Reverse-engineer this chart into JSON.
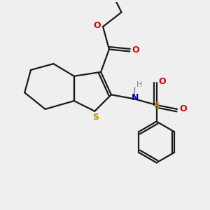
{
  "background_color": "#efefef",
  "bond_color": "#1a1a1a",
  "S_color": "#b8960c",
  "O_color": "#e00000",
  "N_color": "#0000cc",
  "H_color": "#4a9a9a",
  "figsize": [
    3.0,
    3.0
  ],
  "dpi": 100,
  "xlim": [
    0,
    10
  ],
  "ylim": [
    0,
    10
  ]
}
